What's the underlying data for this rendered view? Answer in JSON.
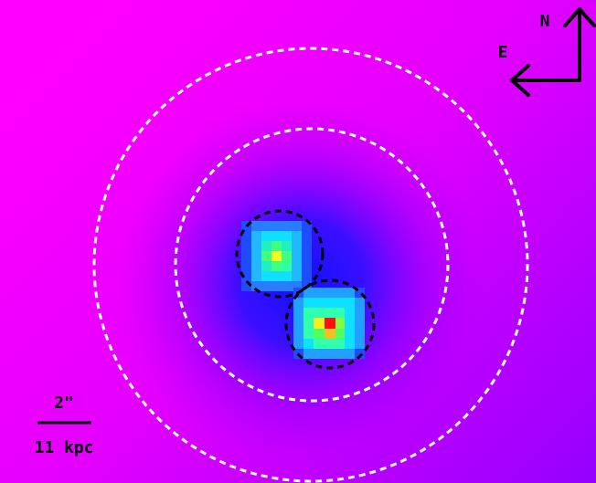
{
  "compass": {
    "north": "N",
    "east": "E"
  },
  "scale_bar": {
    "angular": "2\"",
    "physical": "11 kpc"
  }
}
